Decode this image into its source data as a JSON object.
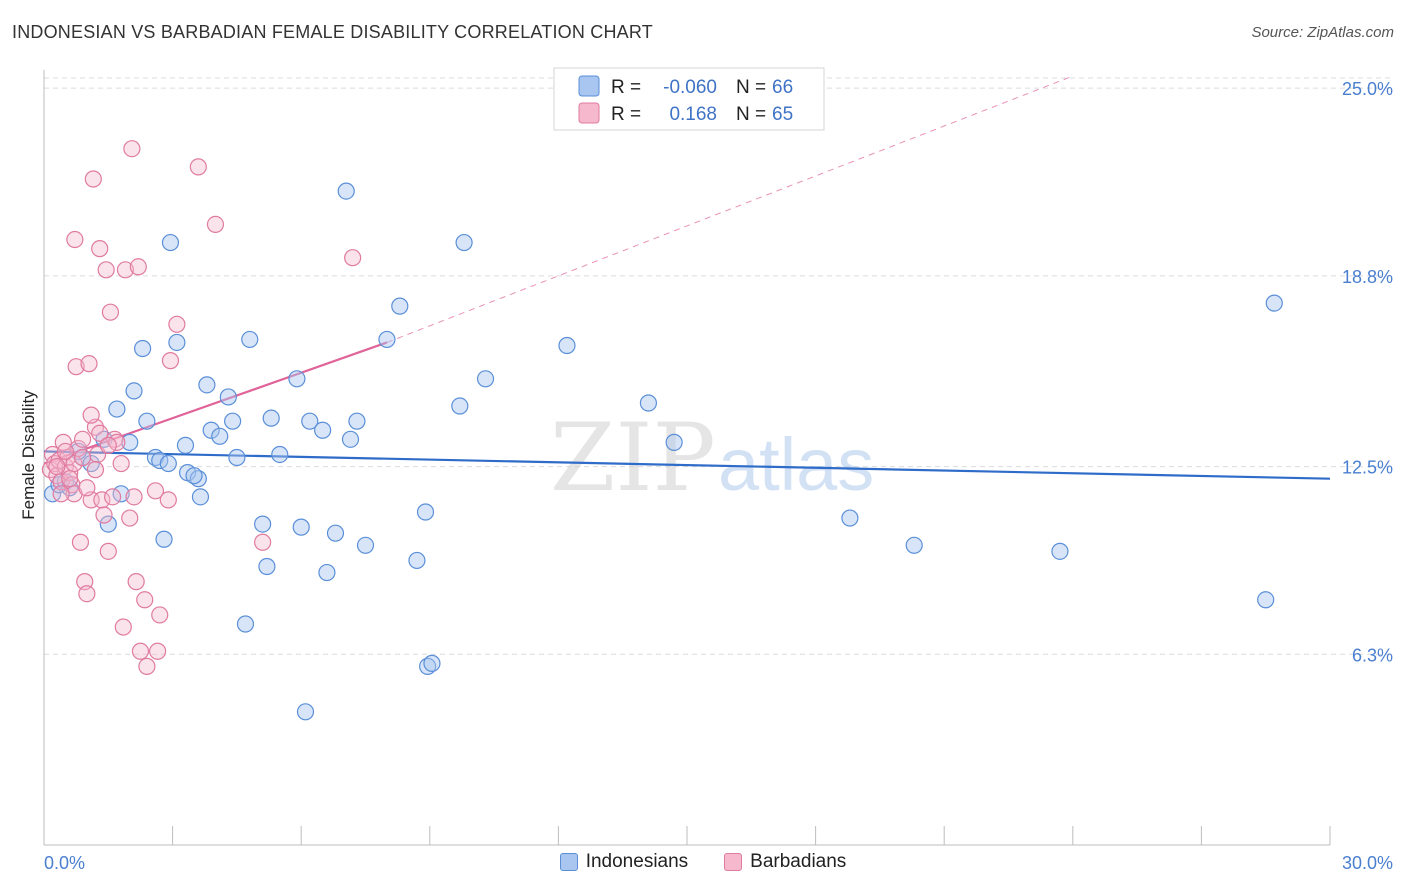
{
  "title": "INDONESIAN VS BARBADIAN FEMALE DISABILITY CORRELATION CHART",
  "source": "Source: ZipAtlas.com",
  "watermark": {
    "zip": "ZIP",
    "atlas": "atlas"
  },
  "colors": {
    "blue_fill": "#a8c6f0",
    "blue_stroke": "#5a8fd8",
    "blue_line": "#2f6cc9",
    "pink_fill": "#f5b8cc",
    "pink_stroke": "#e07ba0",
    "pink_line": "#e0649a",
    "tick_text": "#4a7fd0",
    "grid": "#dcdcdc"
  },
  "legend": {
    "rows": [
      {
        "r_label": "R =",
        "r_value": "-0.060",
        "n_label": "N =",
        "n_value": "66"
      },
      {
        "r_label": "R =",
        "r_value": "0.168",
        "n_label": "N =",
        "n_value": "65"
      }
    ]
  },
  "bottom_legend": [
    "Indonesians",
    "Barbadians"
  ],
  "chart_data": {
    "type": "scatter",
    "title": "INDONESIAN VS BARBADIAN FEMALE DISABILITY CORRELATION CHART",
    "xlabel": "",
    "ylabel": "Female Disability",
    "xlim": [
      0,
      30
    ],
    "ylim": [
      0,
      25.6
    ],
    "x_tick_labels": [
      "0.0%",
      "30.0%"
    ],
    "y_ticks": [
      6.3,
      12.5,
      18.8,
      25.0
    ],
    "y_tick_labels": [
      "6.3%",
      "12.5%",
      "18.8%",
      "25.0%"
    ],
    "grid": true,
    "series": [
      {
        "name": "Indonesians",
        "r": -0.06,
        "n": 66,
        "trend": {
          "x0": 0,
          "y0": 13.0,
          "x1": 30,
          "y1": 12.1
        },
        "points": [
          [
            0.2,
            11.6
          ],
          [
            0.35,
            11.9
          ],
          [
            0.5,
            12.0
          ],
          [
            0.6,
            11.8
          ],
          [
            0.9,
            12.8
          ],
          [
            1.1,
            12.6
          ],
          [
            1.5,
            10.6
          ],
          [
            1.7,
            14.4
          ],
          [
            1.8,
            11.6
          ],
          [
            2.0,
            13.3
          ],
          [
            2.1,
            15.0
          ],
          [
            2.3,
            16.4
          ],
          [
            2.4,
            14.0
          ],
          [
            2.6,
            12.8
          ],
          [
            2.7,
            12.7
          ],
          [
            2.8,
            10.1
          ],
          [
            2.95,
            19.9
          ],
          [
            3.1,
            16.6
          ],
          [
            3.3,
            13.2
          ],
          [
            3.35,
            12.3
          ],
          [
            3.6,
            12.1
          ],
          [
            3.65,
            11.5
          ],
          [
            3.8,
            15.2
          ],
          [
            3.9,
            13.7
          ],
          [
            4.1,
            13.5
          ],
          [
            4.3,
            14.8
          ],
          [
            4.4,
            14.0
          ],
          [
            4.5,
            12.8
          ],
          [
            4.7,
            7.3
          ],
          [
            4.8,
            16.7
          ],
          [
            5.1,
            10.6
          ],
          [
            5.2,
            9.2
          ],
          [
            5.3,
            14.1
          ],
          [
            5.5,
            12.9
          ],
          [
            5.9,
            15.4
          ],
          [
            6.0,
            10.5
          ],
          [
            6.1,
            4.4
          ],
          [
            6.2,
            14.0
          ],
          [
            6.5,
            13.7
          ],
          [
            6.6,
            9.0
          ],
          [
            6.8,
            10.3
          ],
          [
            7.05,
            21.6
          ],
          [
            7.15,
            13.4
          ],
          [
            7.3,
            14.0
          ],
          [
            7.5,
            9.9
          ],
          [
            8.0,
            16.7
          ],
          [
            8.3,
            17.8
          ],
          [
            8.7,
            9.4
          ],
          [
            8.9,
            11.0
          ],
          [
            8.95,
            5.9
          ],
          [
            9.05,
            6.0
          ],
          [
            9.7,
            14.5
          ],
          [
            9.8,
            19.9
          ],
          [
            10.3,
            15.4
          ],
          [
            12.2,
            16.5
          ],
          [
            14.1,
            14.6
          ],
          [
            14.7,
            13.3
          ],
          [
            18.8,
            10.8
          ],
          [
            20.3,
            9.9
          ],
          [
            23.7,
            9.7
          ],
          [
            28.5,
            8.1
          ],
          [
            28.7,
            17.9
          ],
          [
            0.8,
            13.0
          ],
          [
            1.4,
            13.4
          ],
          [
            2.9,
            12.6
          ],
          [
            3.5,
            12.2
          ]
        ]
      },
      {
        "name": "Barbadians",
        "r": 0.168,
        "n": 65,
        "trend": {
          "x0": 0,
          "y0": 12.6,
          "x1": 8.0,
          "y1": 16.6
        },
        "trend_extension": {
          "x0": 8.0,
          "y0": 16.6,
          "x1": 24.0,
          "y1": 25.4
        },
        "points": [
          [
            0.15,
            12.4
          ],
          [
            0.2,
            12.9
          ],
          [
            0.25,
            12.6
          ],
          [
            0.3,
            12.2
          ],
          [
            0.35,
            12.7
          ],
          [
            0.4,
            12.0
          ],
          [
            0.45,
            13.3
          ],
          [
            0.5,
            12.5
          ],
          [
            0.55,
            12.8
          ],
          [
            0.6,
            12.3
          ],
          [
            0.65,
            11.9
          ],
          [
            0.7,
            12.6
          ],
          [
            0.7,
            11.6
          ],
          [
            0.72,
            20.0
          ],
          [
            0.75,
            15.8
          ],
          [
            0.8,
            13.1
          ],
          [
            0.85,
            10.0
          ],
          [
            0.9,
            13.4
          ],
          [
            0.95,
            8.7
          ],
          [
            1.0,
            8.3
          ],
          [
            1.05,
            15.9
          ],
          [
            1.1,
            11.4
          ],
          [
            1.15,
            22.0
          ],
          [
            1.2,
            13.8
          ],
          [
            1.25,
            12.9
          ],
          [
            1.3,
            19.7
          ],
          [
            1.35,
            11.4
          ],
          [
            1.4,
            10.9
          ],
          [
            1.45,
            19.0
          ],
          [
            1.5,
            9.7
          ],
          [
            1.55,
            17.6
          ],
          [
            1.6,
            11.5
          ],
          [
            1.65,
            13.4
          ],
          [
            1.7,
            13.3
          ],
          [
            1.8,
            12.6
          ],
          [
            1.85,
            7.2
          ],
          [
            1.9,
            19.0
          ],
          [
            2.0,
            10.8
          ],
          [
            2.05,
            23.0
          ],
          [
            2.1,
            11.5
          ],
          [
            2.15,
            8.7
          ],
          [
            2.2,
            19.1
          ],
          [
            2.25,
            6.4
          ],
          [
            2.35,
            8.1
          ],
          [
            2.4,
            5.9
          ],
          [
            2.6,
            11.7
          ],
          [
            2.65,
            6.4
          ],
          [
            2.7,
            7.6
          ],
          [
            2.9,
            11.4
          ],
          [
            2.95,
            16.0
          ],
          [
            3.1,
            17.2
          ],
          [
            3.6,
            22.4
          ],
          [
            4.0,
            20.5
          ],
          [
            5.1,
            10.0
          ],
          [
            7.2,
            19.4
          ],
          [
            0.5,
            13.0
          ],
          [
            0.6,
            12.1
          ],
          [
            0.9,
            12.8
          ],
          [
            1.0,
            11.8
          ],
          [
            1.2,
            12.4
          ],
          [
            1.3,
            13.6
          ],
          [
            1.5,
            13.2
          ],
          [
            0.3,
            12.5
          ],
          [
            0.4,
            11.6
          ],
          [
            1.1,
            14.2
          ]
        ]
      }
    ]
  }
}
